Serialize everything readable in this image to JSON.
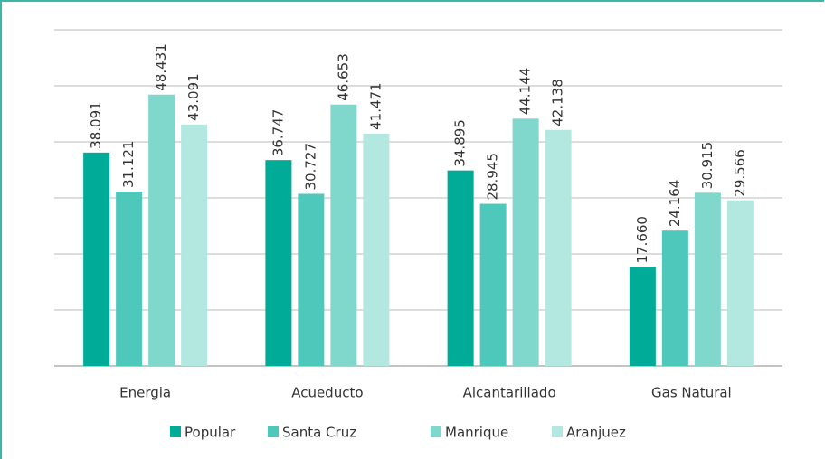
{
  "chart_data": {
    "type": "bar",
    "categories": [
      "Energia",
      "Acueducto",
      "Alcantarillado",
      "Gas Natural"
    ],
    "series": [
      {
        "name": "Popular",
        "color": "#00ab97",
        "values": [
          38091,
          36747,
          34895,
          17660
        ],
        "value_labels": [
          "38.091",
          "36.747",
          "34.895",
          "17.660"
        ]
      },
      {
        "name": "Santa Cruz",
        "color": "#4ec8ba",
        "values": [
          31121,
          30727,
          28945,
          24164
        ],
        "value_labels": [
          "31.121",
          "30.727",
          "28.945",
          "24.164"
        ]
      },
      {
        "name": "Manrique",
        "color": "#80d8cd",
        "values": [
          48431,
          46653,
          44144,
          30915
        ],
        "value_labels": [
          "48.431",
          "46.653",
          "44.144",
          "30.915"
        ]
      },
      {
        "name": "Aranjuez",
        "color": "#b3e8e1",
        "values": [
          43091,
          41471,
          42138,
          29566
        ],
        "value_labels": [
          "43.091",
          "41.471",
          "42.138",
          "29.566"
        ]
      }
    ],
    "ylim": [
      0,
      60000
    ],
    "yticks": [
      0,
      10000,
      20000,
      30000,
      40000,
      50000,
      60000
    ],
    "grid": true,
    "legend": "bottom"
  }
}
